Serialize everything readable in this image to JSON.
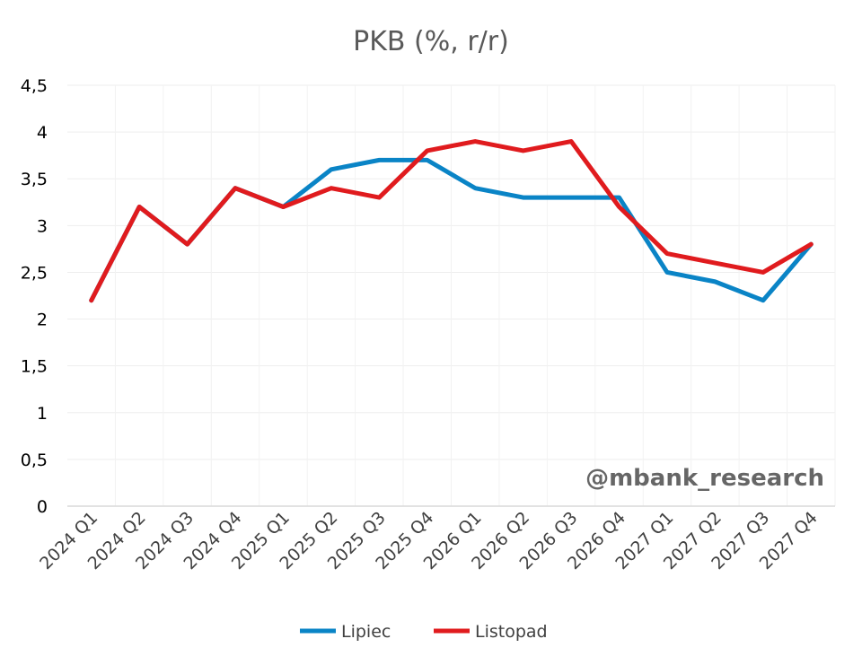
{
  "chart_data": {
    "type": "line",
    "title": "PKB (%, r/r)",
    "xlabel": "",
    "ylabel": "",
    "ylim": [
      0,
      4.5
    ],
    "yticks": [
      0,
      0.5,
      1,
      1.5,
      2,
      2.5,
      3,
      3.5,
      4,
      4.5
    ],
    "ytick_labels": [
      "0",
      "0,5",
      "1",
      "1,5",
      "2",
      "2,5",
      "3",
      "3,5",
      "4",
      "4,5"
    ],
    "categories": [
      "2024 Q1",
      "2024 Q2",
      "2024 Q3",
      "2024 Q4",
      "2025 Q1",
      "2025 Q2",
      "2025 Q3",
      "2025 Q4",
      "2026 Q1",
      "2026 Q2",
      "2026 Q3",
      "2026 Q4",
      "2027 Q1",
      "2027 Q2",
      "2027 Q3",
      "2027 Q4"
    ],
    "series": [
      {
        "name": "Lipiec",
        "color": "#0a84c6",
        "values": [
          2.2,
          3.2,
          2.8,
          3.4,
          3.2,
          3.6,
          3.7,
          3.7,
          3.4,
          3.3,
          3.3,
          3.3,
          2.5,
          2.4,
          2.2,
          2.8
        ]
      },
      {
        "name": "Listopad",
        "color": "#e01b1e",
        "values": [
          2.2,
          3.2,
          2.8,
          3.4,
          3.2,
          3.4,
          3.3,
          3.8,
          3.9,
          3.8,
          3.9,
          3.2,
          2.7,
          2.6,
          2.5,
          2.8
        ]
      }
    ],
    "grid": true,
    "legend": "bottom-center",
    "annotation": "@mbank_research"
  }
}
